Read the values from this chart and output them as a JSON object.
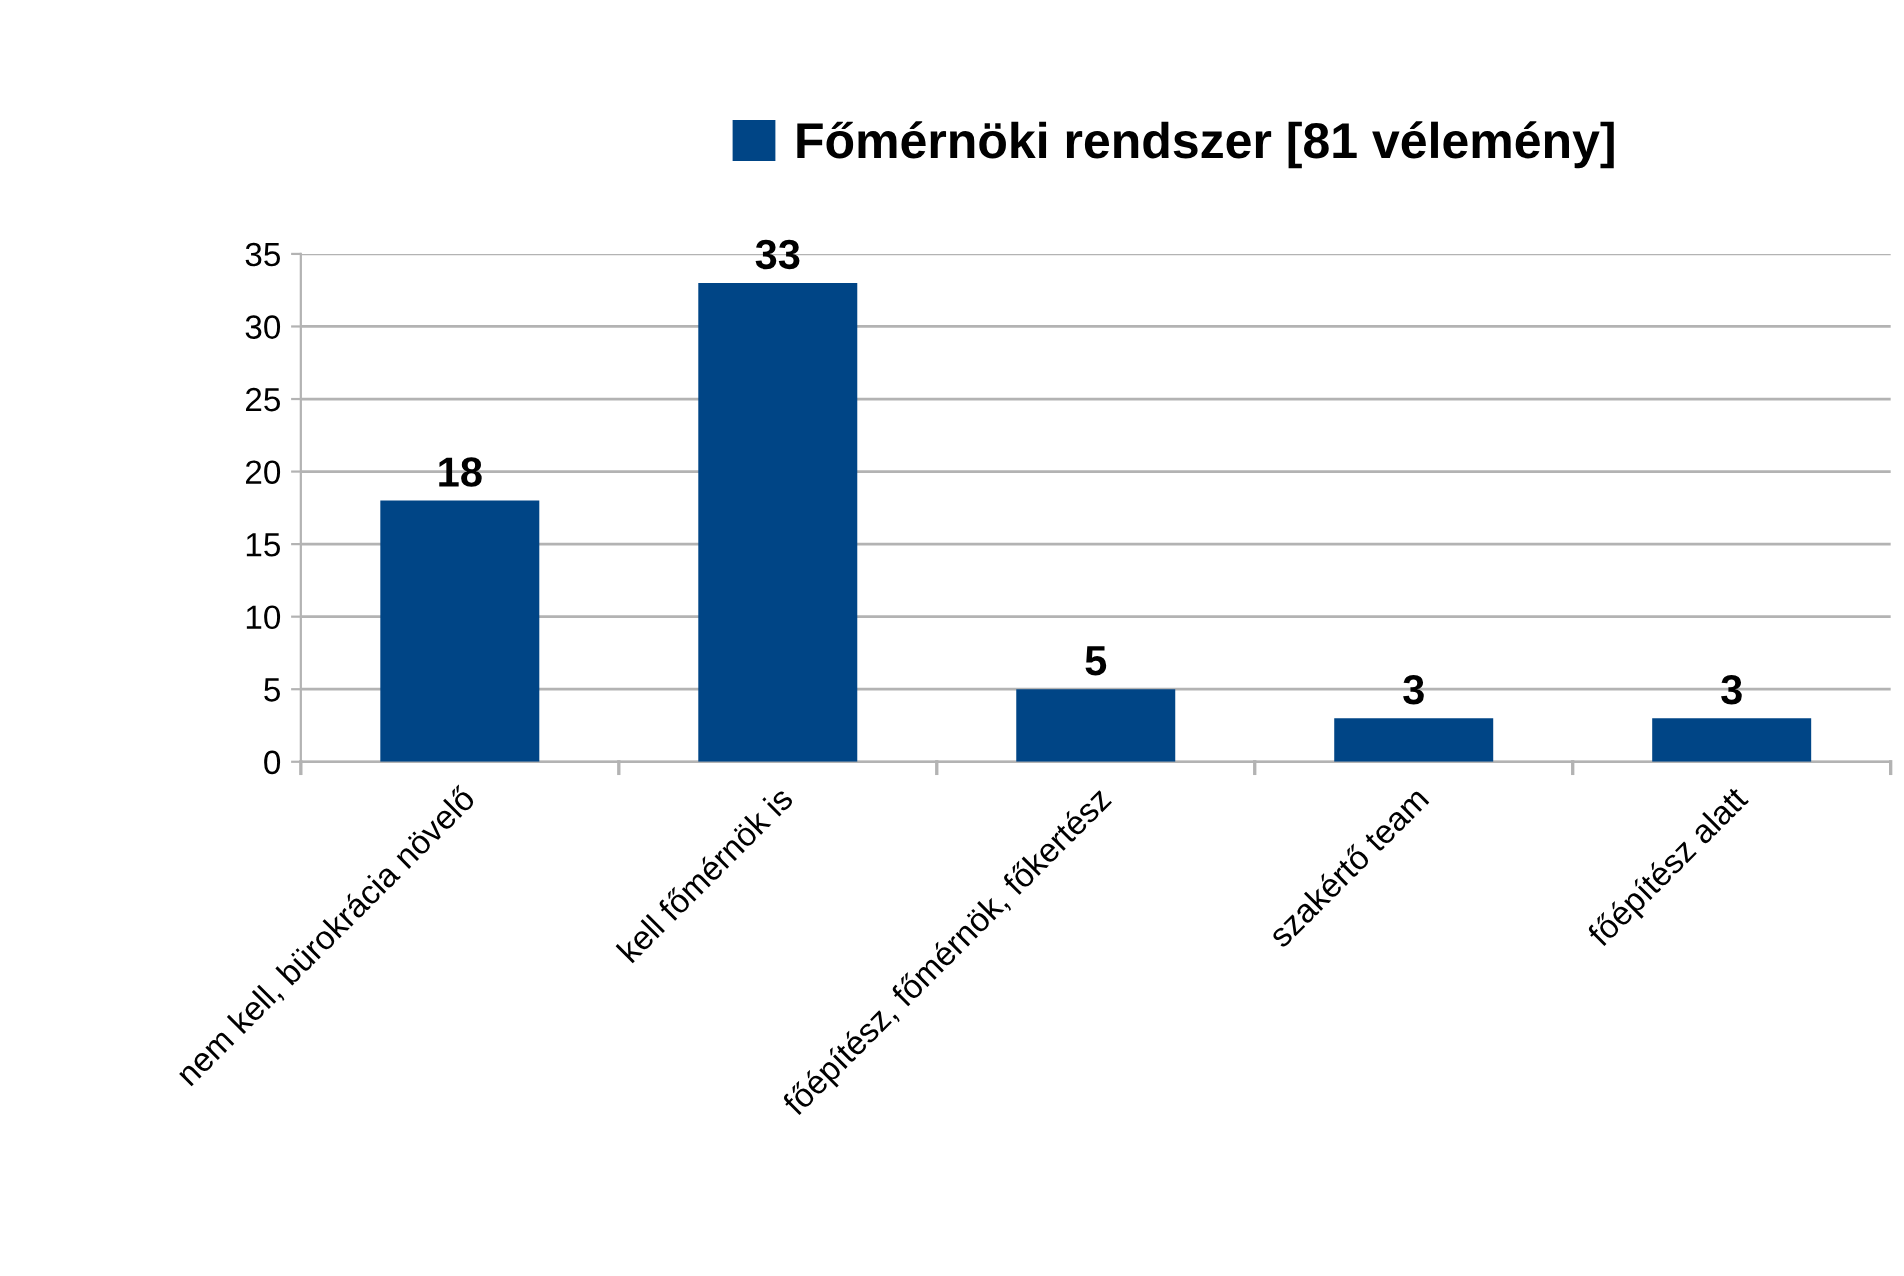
{
  "chart_data": {
    "type": "bar",
    "categories": [
      "nem kell, bürokrácia növelő",
      "kell főmérnök is",
      "főépítész, főmérnök, főkertész",
      "szakértő team",
      "főépítész alatt"
    ],
    "series": [
      {
        "name": "Főmérnöki rendszer [81 vélemény]",
        "color": "#004586",
        "values": [
          18,
          33,
          5,
          3,
          3
        ]
      }
    ],
    "ylim": [
      0,
      35
    ],
    "yticks": [
      0,
      5,
      10,
      15,
      20,
      25,
      30,
      35
    ],
    "grid": "y",
    "legend": "top",
    "data_labels": true
  }
}
